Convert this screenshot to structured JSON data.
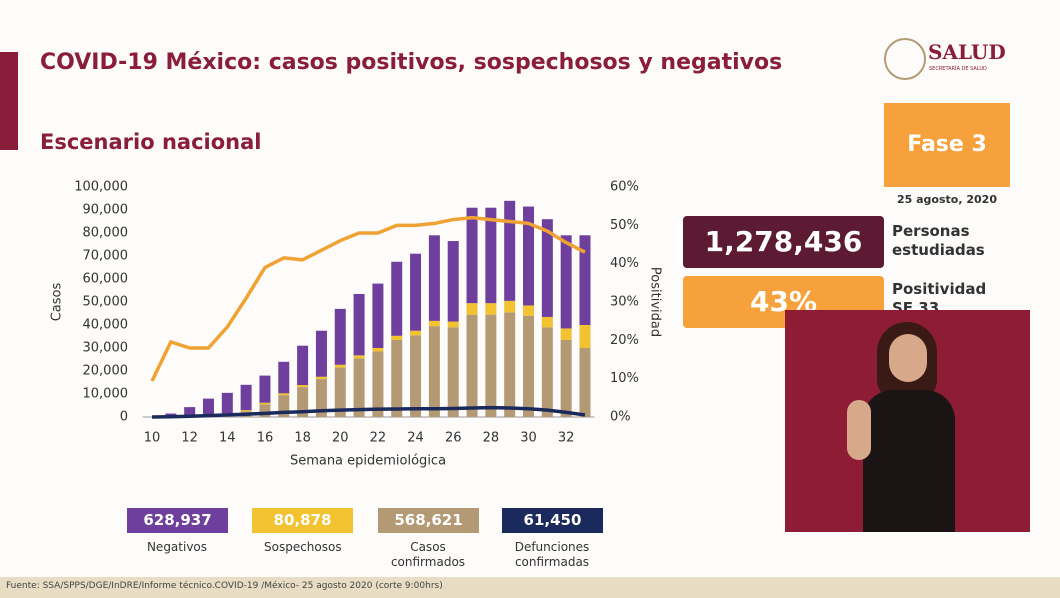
{
  "header": {
    "title": "COVID-19 México: casos positivos, sospechosos y negativos",
    "subtitle": "Escenario nacional",
    "logo": "SALUD",
    "logo_sub": "SECRETARÍA DE SALUD"
  },
  "panel": {
    "phase": "Fase 3",
    "date": "25 agosto, 2020",
    "studied_value": "1,278,436",
    "studied_label": "Personas estudiadas",
    "positivity_value": "43%",
    "positivity_label": "Positividad SE 33"
  },
  "footer": "Fuente: SSA/SPPS/DGE/InDRE/Informe técnico.COVID-19 /México- 25 agosto 2020 (corte 9:00hrs)",
  "chart_data": {
    "type": "bar",
    "stacked": true,
    "x_label": "Semana epidemiológica",
    "y_label": "Casos",
    "y2_label": "Positividad",
    "x": [
      10,
      11,
      12,
      13,
      14,
      15,
      16,
      17,
      18,
      19,
      20,
      21,
      22,
      23,
      24,
      25,
      26,
      27,
      28,
      29,
      30,
      31,
      32,
      33
    ],
    "xlim": [
      9.5,
      33.5
    ],
    "xticks": [
      10,
      12,
      14,
      16,
      18,
      20,
      22,
      24,
      26,
      28,
      30,
      32
    ],
    "ylim": [
      0,
      100000
    ],
    "yticks": [
      0,
      {
        "value": 10000,
        "label": "10,000"
      },
      {
        "value": 20000,
        "label": "20,000"
      },
      {
        "value": 30000,
        "label": "30,000"
      },
      {
        "value": 40000,
        "label": "40,000"
      },
      {
        "value": 50000,
        "label": "50,000"
      },
      {
        "value": 60000,
        "label": "60,000"
      },
      {
        "value": 70000,
        "label": "70,000"
      },
      {
        "value": 80000,
        "label": "80,000"
      },
      {
        "value": 90000,
        "label": "90,000"
      },
      {
        "value": 100000,
        "label": "100,000"
      }
    ],
    "y2lim": [
      0,
      60
    ],
    "y2ticks": [
      {
        "value": 0,
        "label": "0%"
      },
      {
        "value": 10,
        "label": "10%"
      },
      {
        "value": 20,
        "label": "20%"
      },
      {
        "value": 30,
        "label": "30%"
      },
      {
        "value": 40,
        "label": "40%"
      },
      {
        "value": 50,
        "label": "50%"
      },
      {
        "value": 60,
        "label": "60%"
      }
    ],
    "series": [
      {
        "name": "Casos confirmados",
        "total": "568,621",
        "color": "#b49a74",
        "values": [
          null,
          100,
          300,
          600,
          1200,
          2500,
          5500,
          9500,
          13000,
          16500,
          21500,
          25500,
          28500,
          33500,
          35500,
          39500,
          39000,
          44500,
          44500,
          45500,
          44000,
          39000,
          33500,
          30000
        ]
      },
      {
        "name": "Sospechosos",
        "total": "80,878",
        "color": "#f2c230",
        "values": [
          null,
          100,
          200,
          300,
          400,
          500,
          700,
          800,
          900,
          1000,
          1200,
          1300,
          1500,
          1800,
          2000,
          2300,
          2500,
          5000,
          5000,
          5000,
          4500,
          4500,
          5000,
          10000
        ]
      },
      {
        "name": "Negativos",
        "total": "628,937",
        "color": "#6e3f9c",
        "values": [
          null,
          1300,
          3800,
          7100,
          8900,
          11000,
          11800,
          13700,
          17100,
          20000,
          24300,
          26700,
          28000,
          32200,
          33500,
          37200,
          35000,
          41500,
          41500,
          43500,
          43000,
          42500,
          40500,
          39000
        ]
      },
      {
        "type": "line",
        "axis": "y2",
        "color": "#f0a232",
        "values": [
          9.4,
          19.6,
          18,
          18,
          23.5,
          31,
          39,
          41.5,
          41,
          43.5,
          46,
          48,
          48,
          50,
          50,
          50.5,
          51.5,
          52,
          51.5,
          51,
          50.5,
          48.5,
          45.5,
          43
        ]
      },
      {
        "type": "line",
        "name": "Defunciones confirmadas",
        "total": "61,450",
        "color": "#1b2a5c",
        "values": [
          0,
          100,
          300,
          600,
          900,
          1200,
          1600,
          2000,
          2300,
          2700,
          3000,
          3200,
          3400,
          3500,
          3600,
          3600,
          3700,
          3900,
          4100,
          3900,
          3600,
          3000,
          2000,
          900
        ]
      }
    ]
  }
}
